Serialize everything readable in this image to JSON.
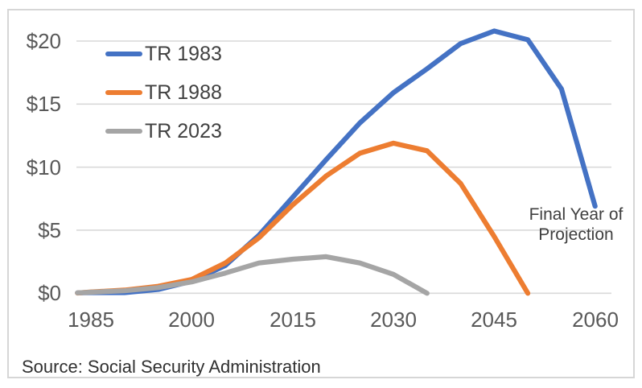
{
  "chart_data": {
    "type": "line",
    "x_tick_labels": [
      "1985",
      "2000",
      "2015",
      "2030",
      "2045",
      "2060"
    ],
    "x_tick_values": [
      1985,
      2000,
      2015,
      2030,
      2045,
      2060
    ],
    "y_tick_labels": [
      "$0",
      "$5",
      "$10",
      "$15",
      "$20"
    ],
    "y_tick_values": [
      0,
      5,
      10,
      15,
      20
    ],
    "xlim": [
      1982.8,
      2062.5
    ],
    "ylim": [
      0,
      21.3
    ],
    "grid": "horizontal",
    "gridline_color": "#d9d9d9",
    "legend_position": "top-left-inside",
    "series": [
      {
        "name": "TR 1983",
        "color": "#4472C4",
        "points": [
          [
            1983,
            0.03
          ],
          [
            1985,
            0.05
          ],
          [
            1990,
            0.05
          ],
          [
            1995,
            0.3
          ],
          [
            2000,
            0.95
          ],
          [
            2005,
            2.2
          ],
          [
            2010,
            4.6
          ],
          [
            2015,
            7.6
          ],
          [
            2020,
            10.6
          ],
          [
            2025,
            13.5
          ],
          [
            2030,
            15.9
          ],
          [
            2035,
            17.8
          ],
          [
            2040,
            19.8
          ],
          [
            2045,
            20.8
          ],
          [
            2050,
            20.1
          ],
          [
            2055,
            16.2
          ],
          [
            2060,
            6.9
          ]
        ]
      },
      {
        "name": "TR 1988",
        "color": "#ED7D31",
        "points": [
          [
            1983,
            0.02
          ],
          [
            1985,
            0.1
          ],
          [
            1990,
            0.25
          ],
          [
            1995,
            0.55
          ],
          [
            2000,
            1.1
          ],
          [
            2005,
            2.4
          ],
          [
            2010,
            4.4
          ],
          [
            2015,
            7.0
          ],
          [
            2020,
            9.3
          ],
          [
            2025,
            11.1
          ],
          [
            2030,
            11.9
          ],
          [
            2035,
            11.3
          ],
          [
            2040,
            8.7
          ],
          [
            2045,
            4.5
          ],
          [
            2050,
            0
          ]
        ]
      },
      {
        "name": "TR 2023",
        "color": "#A5A5A5",
        "points": [
          [
            1983,
            0.03
          ],
          [
            1985,
            0.08
          ],
          [
            1990,
            0.2
          ],
          [
            1995,
            0.45
          ],
          [
            2000,
            0.9
          ],
          [
            2005,
            1.6
          ],
          [
            2010,
            2.4
          ],
          [
            2015,
            2.7
          ],
          [
            2020,
            2.9
          ],
          [
            2025,
            2.4
          ],
          [
            2030,
            1.5
          ],
          [
            2035,
            0
          ]
        ]
      }
    ],
    "annotation_lines": [
      "Final Year of",
      "Projection"
    ],
    "source": "Source: Social Security Administration"
  },
  "colors": {
    "tick_text": "#595959",
    "legend_text": "#404040",
    "annotation_text": "#3f3f3f",
    "source_text": "#303030",
    "frame_border": "#d6d6d6"
  }
}
